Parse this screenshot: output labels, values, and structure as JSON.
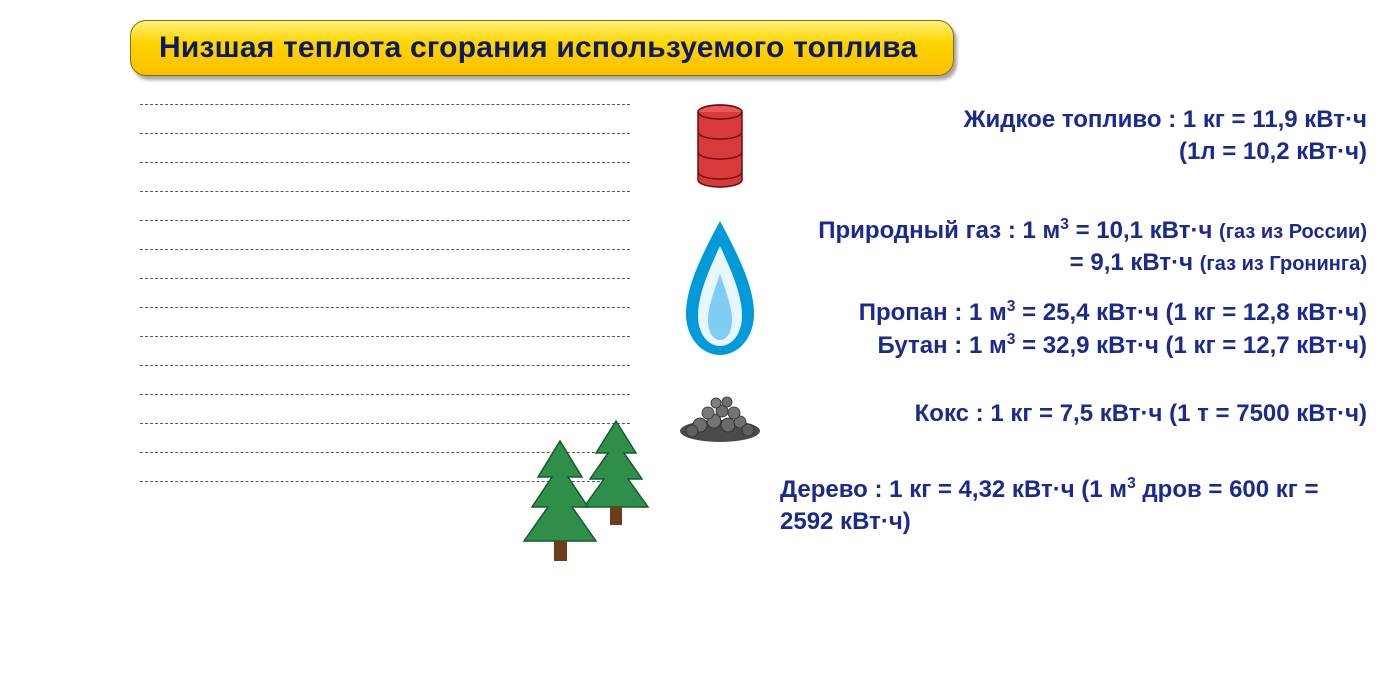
{
  "title": "Низшая теплота сгорания используемого топлива",
  "colors": {
    "title_text": "#0b1a63",
    "title_bg_top": "#fff07a",
    "title_bg_mid": "#ffd500",
    "title_bg_bot": "#fbbf00",
    "title_border": "#8a6d00",
    "body_text": "#1b2a8f",
    "dash": "#5a5a5a",
    "barrel_fill": "#d63a3a",
    "barrel_stroke": "#6b0c0c",
    "flame_outer": "#0099d9",
    "flame_inner1": "#e8f6ff",
    "flame_inner2": "#7ecdf3",
    "coke_fill": "#6f6f6f",
    "coke_dark": "#3a3a3a",
    "tree_fill": "#2f8f4a",
    "tree_outline": "#155c2d",
    "trunk": "#6b3d1a"
  },
  "notes_line_count": 14,
  "fuels": {
    "liquid": {
      "line1": "Жидкое топливо : 1 кг = 11,9 кВт·ч",
      "line2": "(1л = 10,2 кВт·ч)"
    },
    "natural_gas": {
      "line1_pre": "Природный газ : 1 м",
      "line1_post": " = 10,1 кВт·ч ",
      "line1_note": "(газ из России)",
      "line2_pre": "= 9,1 кВт·ч ",
      "line2_note": "(газ из Гронинга)"
    },
    "propane": {
      "pre": "Пропан : 1 м",
      "post": " = 25,4 кВт·ч (1 кг = 12,8 кВт·ч)"
    },
    "butane": {
      "pre": "Бутан : 1 м",
      "post": " = 32,9 кВт·ч (1 кг = 12,7 кВт·ч)"
    },
    "coke": {
      "text": "Кокс : 1 кг = 7,5 кВт·ч (1 т = 7500 кВт·ч)"
    },
    "wood": {
      "pre": "Дерево : 1 кг = 4,32 кВт·ч (1 м",
      "post": " дров = 600 кг = 2592 кВт·ч)"
    }
  }
}
